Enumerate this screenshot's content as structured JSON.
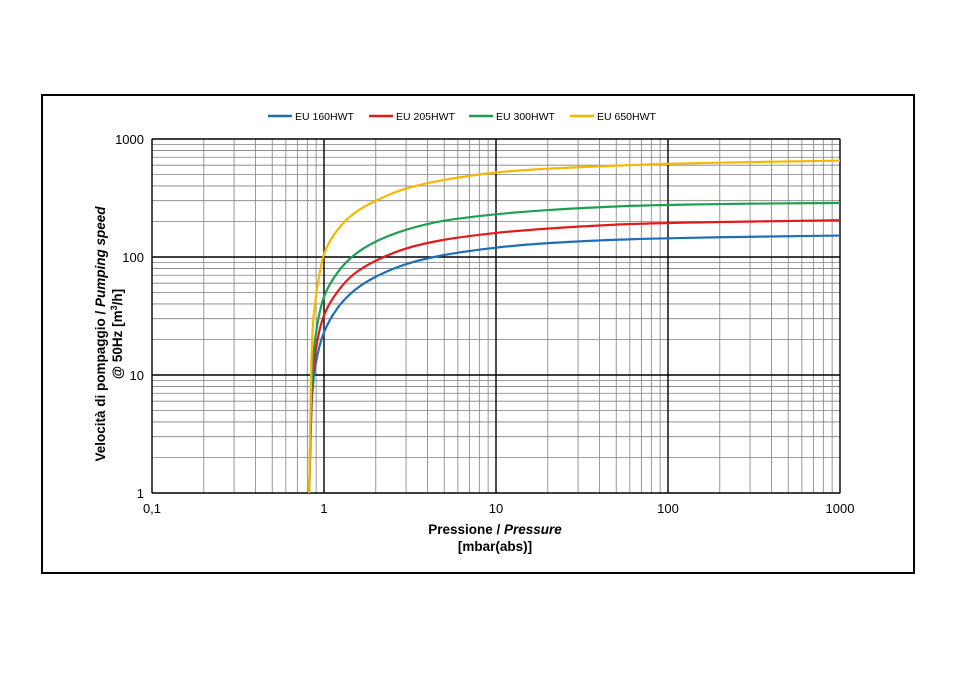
{
  "chart_data": {
    "type": "line",
    "x_scale": "log",
    "y_scale": "log",
    "xlim": [
      0.1,
      1000
    ],
    "ylim": [
      1,
      1000
    ],
    "x_ticks": [
      0.1,
      1,
      10,
      100,
      1000
    ],
    "x_tick_labels": [
      "0,1",
      "1",
      "10",
      "100",
      "1000"
    ],
    "y_ticks": [
      1,
      10,
      100,
      1000
    ],
    "y_tick_labels": [
      "1",
      "10",
      "100",
      "1000"
    ],
    "xlabel": {
      "line1_regular": "Pressione / ",
      "line1_italic": "Pressure",
      "line2": "[mbar(abs)]"
    },
    "ylabel": {
      "line1_regular": "Velocità di pompaggio / ",
      "line1_italic": "Pumping speed",
      "line2_prefix": "@ 50Hz [m",
      "line2_sup": "3",
      "line2_suffix": "/h]"
    },
    "legend_position": "top-center",
    "grid": true,
    "series": [
      {
        "name": "EU 160HWT",
        "color": "#1f6fb5",
        "x": [
          0.82,
          0.85,
          0.9,
          1,
          1.2,
          1.5,
          2,
          3,
          5,
          10,
          20,
          50,
          100,
          200,
          500,
          1000
        ],
        "y": [
          1,
          6,
          13,
          23,
          37,
          52,
          68,
          87,
          104,
          120,
          131,
          140,
          144,
          147,
          150,
          152
        ]
      },
      {
        "name": "EU 205HWT",
        "color": "#e31a1c",
        "x": [
          0.82,
          0.85,
          0.9,
          1,
          1.2,
          1.5,
          2,
          3,
          5,
          10,
          20,
          50,
          100,
          200,
          500,
          1000
        ],
        "y": [
          1,
          7,
          17,
          32,
          51,
          72,
          93,
          118,
          140,
          160,
          174,
          188,
          194,
          198,
          202,
          205
        ]
      },
      {
        "name": "EU 300HWT",
        "color": "#1fa050",
        "x": [
          0.82,
          0.85,
          0.9,
          1,
          1.2,
          1.5,
          2,
          3,
          5,
          10,
          20,
          50,
          100,
          200,
          500,
          1000
        ],
        "y": [
          1,
          9,
          23,
          46,
          74,
          104,
          135,
          170,
          203,
          230,
          250,
          268,
          276,
          281,
          285,
          287
        ]
      },
      {
        "name": "EU 650HWT",
        "color": "#f5b800",
        "x": [
          0.82,
          0.85,
          0.9,
          1,
          1.2,
          1.5,
          2,
          3,
          5,
          10,
          20,
          50,
          100,
          200,
          500,
          1000
        ],
        "y": [
          1,
          17,
          47,
          105,
          170,
          235,
          300,
          380,
          450,
          520,
          560,
          595,
          615,
          630,
          645,
          655
        ]
      }
    ]
  }
}
